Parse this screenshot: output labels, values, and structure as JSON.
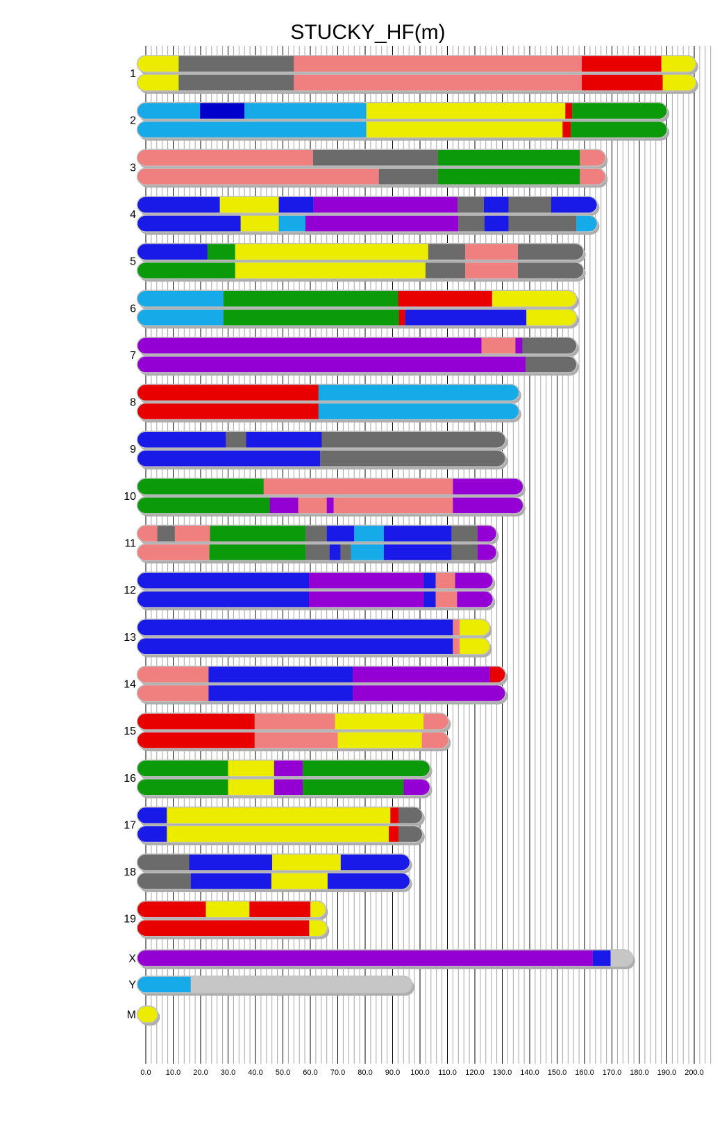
{
  "title": "STUCKY_HF(m)",
  "axis": {
    "min": 0,
    "max": 200,
    "major_step": 10,
    "minor_step": 2,
    "tick_labels": [
      "0.0",
      "10.0",
      "20.0",
      "30.0",
      "40.0",
      "50.0",
      "60.0",
      "70.0",
      "80.0",
      "90.0",
      "100.0",
      "110.0",
      "120.0",
      "130.0",
      "140.0",
      "150.0",
      "160.0",
      "170.0",
      "180.0",
      "190.0",
      "200.0"
    ]
  },
  "colors": {
    "yellow": "#ECEC00",
    "gray": "#6B6B6B",
    "pink": "#F08080",
    "red": "#E80000",
    "blue": "#1A1AE8",
    "navy": "#0000CC",
    "cyan": "#17AAE8",
    "green": "#0A9A0A",
    "purple": "#9400D3",
    "lightgray": "#C6C6C6",
    "grid_minor": "#A6A6A6",
    "grid_major": "#000000",
    "bar_outline": "#C0C0C0",
    "bar_shadow": "#ADADAD"
  },
  "chart_data": {
    "type": "chromosome-ideogram",
    "title": "STUCKY_HF(m)",
    "x_axis_range": [
      0,
      200
    ],
    "grid": "on",
    "chromosomes": [
      {
        "name": "1",
        "copies": [
          [
            [
              "yellow",
              0,
              12
            ],
            [
              "gray",
              12,
              54
            ],
            [
              "pink",
              54,
              159
            ],
            [
              "red",
              159,
              188
            ],
            [
              "yellow",
              188,
              197.5
            ]
          ],
          [
            [
              "yellow",
              0,
              12
            ],
            [
              "gray",
              12,
              54
            ],
            [
              "pink",
              54,
              159
            ],
            [
              "red",
              159,
              188.5
            ],
            [
              "yellow",
              188.5,
              197.5
            ]
          ]
        ]
      },
      {
        "name": "2",
        "copies": [
          [
            [
              "cyan",
              0,
              19.8
            ],
            [
              "navy",
              19.8,
              36
            ],
            [
              "cyan",
              36,
              80.4
            ],
            [
              "yellow",
              80.4,
              153
            ],
            [
              "red",
              153,
              155.5
            ],
            [
              "green",
              155.5,
              187
            ]
          ],
          [
            [
              "cyan",
              0,
              80.4
            ],
            [
              "yellow",
              80.4,
              152
            ],
            [
              "red",
              152,
              155
            ],
            [
              "green",
              155,
              187
            ]
          ]
        ]
      },
      {
        "name": "3",
        "copies": [
          [
            [
              "pink",
              0,
              61
            ],
            [
              "gray",
              61,
              106.5
            ],
            [
              "green",
              106.5,
              158.3
            ],
            [
              "pink",
              158.3,
              164.5
            ]
          ],
          [
            [
              "pink",
              0,
              85
            ],
            [
              "gray",
              85,
              106.5
            ],
            [
              "green",
              106.5,
              158.3
            ],
            [
              "pink",
              158.3,
              164.5
            ]
          ]
        ]
      },
      {
        "name": "4",
        "copies": [
          [
            [
              "blue",
              0,
              27
            ],
            [
              "yellow",
              27,
              48.5
            ],
            [
              "blue",
              48.5,
              61.2
            ],
            [
              "purple",
              61.2,
              113.7
            ],
            [
              "gray",
              113.7,
              123.3
            ],
            [
              "blue",
              123.3,
              132.3
            ],
            [
              "gray",
              132.3,
              147.8
            ],
            [
              "blue",
              147.8,
              161.5
            ]
          ],
          [
            [
              "blue",
              0,
              34.6
            ],
            [
              "yellow",
              34.6,
              48.5
            ],
            [
              "cyan",
              48.5,
              58.2
            ],
            [
              "purple",
              58.2,
              114
            ],
            [
              "gray",
              114,
              123.5
            ],
            [
              "blue",
              123.5,
              132.3
            ],
            [
              "gray",
              132.3,
              157
            ],
            [
              "cyan",
              157,
              161.5
            ]
          ]
        ]
      },
      {
        "name": "5",
        "copies": [
          [
            [
              "blue",
              0,
              22.5
            ],
            [
              "green",
              22.5,
              32.6
            ],
            [
              "yellow",
              32.6,
              103
            ],
            [
              "gray",
              103,
              116.5
            ],
            [
              "pink",
              116.5,
              135.7
            ],
            [
              "gray",
              135.7,
              156.5
            ]
          ],
          [
            [
              "green",
              0,
              32.6
            ],
            [
              "yellow",
              32.6,
              102
            ],
            [
              "gray",
              102,
              116.5
            ],
            [
              "pink",
              116.5,
              135.7
            ],
            [
              "gray",
              135.7,
              156.5
            ]
          ]
        ]
      },
      {
        "name": "6",
        "copies": [
          [
            [
              "cyan",
              0,
              28.3
            ],
            [
              "green",
              28.3,
              92
            ],
            [
              "red",
              92,
              126.3
            ],
            [
              "yellow",
              126.3,
              154
            ]
          ],
          [
            [
              "cyan",
              0,
              28.3
            ],
            [
              "green",
              28.3,
              92.3
            ],
            [
              "red",
              92.3,
              94.6
            ],
            [
              "blue",
              94.6,
              138.8
            ],
            [
              "yellow",
              138.8,
              154
            ]
          ]
        ]
      },
      {
        "name": "7",
        "copies": [
          [
            [
              "purple",
              0,
              122.4
            ],
            [
              "pink",
              122.4,
              134.8
            ],
            [
              "purple",
              134.8,
              137.4
            ],
            [
              "gray",
              137.4,
              154
            ]
          ],
          [
            [
              "purple",
              0,
              138.5
            ],
            [
              "gray",
              138.5,
              154
            ]
          ]
        ]
      },
      {
        "name": "8",
        "copies": [
          [
            [
              "red",
              0,
              63
            ],
            [
              "cyan",
              63,
              133
            ]
          ],
          [
            [
              "red",
              0,
              63
            ],
            [
              "cyan",
              63,
              133
            ]
          ]
        ]
      },
      {
        "name": "9",
        "copies": [
          [
            [
              "blue",
              0,
              29.2
            ],
            [
              "gray",
              29.2,
              36.6
            ],
            [
              "blue",
              36.6,
              64.2
            ],
            [
              "gray",
              64.2,
              128
            ]
          ],
          [
            [
              "blue",
              0,
              63.6
            ],
            [
              "gray",
              63.6,
              128
            ]
          ]
        ]
      },
      {
        "name": "10",
        "copies": [
          [
            [
              "green",
              0,
              43
            ],
            [
              "pink",
              43,
              112
            ],
            [
              "purple",
              112,
              134.5
            ]
          ],
          [
            [
              "green",
              0,
              45.2
            ],
            [
              "purple",
              45.2,
              55.6
            ],
            [
              "pink",
              55.6,
              66
            ],
            [
              "purple",
              66,
              68.5
            ],
            [
              "pink",
              68.5,
              112
            ],
            [
              "purple",
              112,
              134.5
            ]
          ]
        ]
      },
      {
        "name": "11",
        "copies": [
          [
            [
              "pink",
              0,
              4.2
            ],
            [
              "gray",
              4.2,
              10.6
            ],
            [
              "pink",
              10.6,
              23.4
            ],
            [
              "green",
              23.4,
              58.3
            ],
            [
              "gray",
              58.3,
              66
            ],
            [
              "blue",
              66,
              76
            ],
            [
              "cyan",
              76,
              86.8
            ],
            [
              "blue",
              86.8,
              111.5
            ],
            [
              "gray",
              111.5,
              121
            ],
            [
              "purple",
              121,
              124.8
            ]
          ],
          [
            [
              "pink",
              0,
              23.2
            ],
            [
              "green",
              23.2,
              58.3
            ],
            [
              "gray",
              58.3,
              67
            ],
            [
              "blue",
              67,
              71
            ],
            [
              "gray",
              71,
              74.8
            ],
            [
              "cyan",
              74.8,
              86.8
            ],
            [
              "blue",
              86.8,
              111.5
            ],
            [
              "gray",
              111.5,
              121
            ],
            [
              "purple",
              121,
              124.8
            ]
          ]
        ]
      },
      {
        "name": "12",
        "copies": [
          [
            [
              "blue",
              0,
              59.5
            ],
            [
              "purple",
              59.5,
              101.3
            ],
            [
              "blue",
              101.3,
              105.7
            ],
            [
              "pink",
              105.7,
              112.8
            ],
            [
              "purple",
              112.8,
              123.5
            ]
          ],
          [
            [
              "blue",
              0,
              59.5
            ],
            [
              "purple",
              59.5,
              101.3
            ],
            [
              "blue",
              101.3,
              105.7
            ],
            [
              "pink",
              105.7,
              113.5
            ],
            [
              "purple",
              113.5,
              123.5
            ]
          ]
        ]
      },
      {
        "name": "13",
        "copies": [
          [
            [
              "blue",
              0,
              112
            ],
            [
              "pink",
              112,
              114.5
            ],
            [
              "yellow",
              114.5,
              122.3
            ]
          ],
          [
            [
              "blue",
              0,
              112
            ],
            [
              "pink",
              112,
              114.5
            ],
            [
              "yellow",
              114.5,
              122.3
            ]
          ]
        ]
      },
      {
        "name": "14",
        "copies": [
          [
            [
              "pink",
              0,
              22.9
            ],
            [
              "blue",
              22.9,
              75.5
            ],
            [
              "purple",
              75.5,
              125.5
            ],
            [
              "red",
              125.5,
              128
            ]
          ],
          [
            [
              "pink",
              0,
              22.9
            ],
            [
              "blue",
              22.9,
              75.5
            ],
            [
              "purple",
              75.5,
              128
            ]
          ]
        ]
      },
      {
        "name": "15",
        "copies": [
          [
            [
              "red",
              0,
              39.7
            ],
            [
              "pink",
              39.7,
              69
            ],
            [
              "yellow",
              69,
              101.3
            ],
            [
              "pink",
              101.3,
              107.3
            ]
          ],
          [
            [
              "red",
              0,
              39.7
            ],
            [
              "pink",
              39.7,
              70
            ],
            [
              "yellow",
              70,
              100.7
            ],
            [
              "pink",
              100.7,
              107.3
            ]
          ]
        ]
      },
      {
        "name": "16",
        "copies": [
          [
            [
              "green",
              0,
              30
            ],
            [
              "yellow",
              30,
              46.8
            ],
            [
              "purple",
              46.8,
              57.2
            ],
            [
              "green",
              57.2,
              100.5
            ]
          ],
          [
            [
              "green",
              0,
              30
            ],
            [
              "yellow",
              30,
              46.8
            ],
            [
              "purple",
              46.8,
              57.2
            ],
            [
              "green",
              57.2,
              94
            ],
            [
              "purple",
              94,
              100.5
            ]
          ]
        ]
      },
      {
        "name": "17",
        "copies": [
          [
            [
              "blue",
              0,
              7.7
            ],
            [
              "yellow",
              7.7,
              89.2
            ],
            [
              "red",
              89.2,
              92.2
            ],
            [
              "gray",
              92.2,
              97.8
            ]
          ],
          [
            [
              "blue",
              0,
              7.7
            ],
            [
              "yellow",
              7.7,
              88.6
            ],
            [
              "red",
              88.6,
              92.2
            ],
            [
              "gray",
              92.2,
              97.8
            ]
          ]
        ]
      },
      {
        "name": "18",
        "copies": [
          [
            [
              "gray",
              0,
              15.8
            ],
            [
              "blue",
              15.8,
              46.1
            ],
            [
              "yellow",
              46.1,
              71.1
            ],
            [
              "blue",
              71.1,
              93.2
            ]
          ],
          [
            [
              "gray",
              0,
              16.4
            ],
            [
              "blue",
              16.4,
              45.8
            ],
            [
              "yellow",
              45.8,
              66.3
            ],
            [
              "blue",
              66.3,
              93.2
            ]
          ]
        ]
      },
      {
        "name": "19",
        "copies": [
          [
            [
              "red",
              0,
              21.9
            ],
            [
              "yellow",
              21.9,
              37.8
            ],
            [
              "red",
              37.8,
              60
            ],
            [
              "yellow",
              60,
              62.5
            ]
          ],
          [
            [
              "red",
              0,
              59.6
            ],
            [
              "yellow",
              59.6,
              63
            ]
          ]
        ]
      },
      {
        "name": "X",
        "copies": [
          [
            [
              "purple",
              0,
              163
            ],
            [
              "blue",
              163,
              169.5
            ],
            [
              "lightgray",
              169.5,
              174.5
            ]
          ]
        ]
      },
      {
        "name": "Y",
        "copies": [
          [
            [
              "cyan",
              0,
              16.4
            ],
            [
              "lightgray",
              16.4,
              94
            ]
          ]
        ]
      },
      {
        "name": "M",
        "copies": [
          [
            [
              "yellow",
              0,
              1.2
            ]
          ]
        ]
      }
    ]
  }
}
